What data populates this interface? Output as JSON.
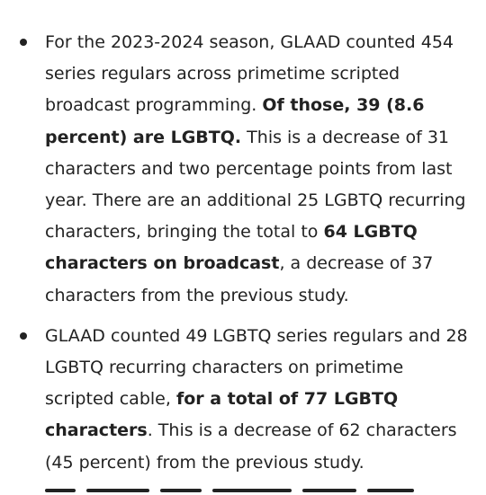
{
  "bullets": [
    {
      "text_1": "For the 2023-2024 season, GLAAD counted 454 series regulars across primetime scripted broadcast programming. ",
      "bold_1": "Of those, 39 (8.6 percent) are LGBTQ.",
      "text_2": " This is a decrease of 31 characters and two percentage points from last year. There are an additional 25 LGBTQ recurring characters, bringing the total to ",
      "bold_2": "64 LGBTQ characters on broadcast",
      "text_3": ", a decrease of 37 characters from the previous study."
    },
    {
      "text_1": "GLAAD counted 49 LGBTQ series regulars and 28 LGBTQ recurring characters on primetime scripted cable, ",
      "bold_1": "for a total of 77 LGBTQ characters",
      "text_2": ". This is a decrease of 62 characters (45 percent) from the previous study."
    }
  ]
}
